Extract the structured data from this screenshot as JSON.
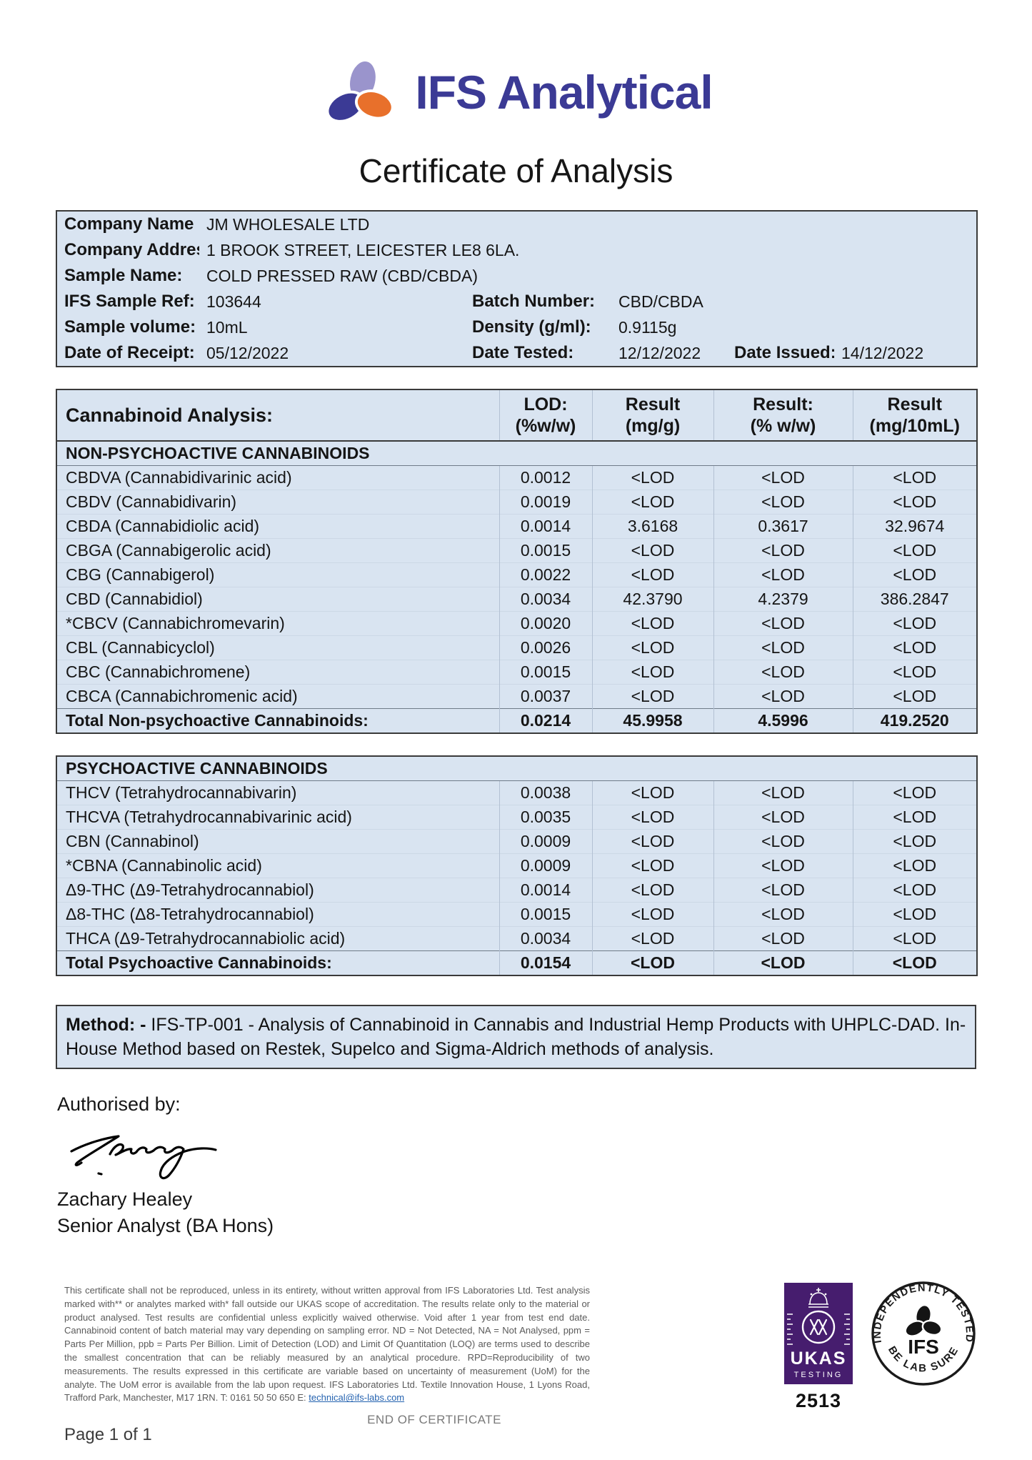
{
  "logo": {
    "brand": "IFS Analytical",
    "colors": {
      "indigo": "#3b3a95",
      "light_purple": "#9a94cc",
      "orange": "#e8702b"
    }
  },
  "title": "Certificate of Analysis",
  "info": {
    "rows": [
      {
        "label": "Company Name",
        "value": "JM WHOLESALE LTD"
      },
      {
        "label": "Company Address",
        "value": "1 BROOK STREET, LEICESTER LE8 6LA."
      },
      {
        "label": "Sample Name:",
        "value": "COLD PRESSED RAW (CBD/CBDA)"
      },
      {
        "label": "IFS Sample Ref:",
        "value": "103644",
        "label2": "Batch Number:",
        "value2": "CBD/CBDA"
      },
      {
        "label": "Sample volume:",
        "value": "10mL",
        "label2": "Density (g/ml):",
        "value2": "0.9115g"
      },
      {
        "label": "Date of Receipt:",
        "value": "05/12/2022",
        "label2": "Date Tested:",
        "value2": "12/12/2022",
        "label3": "Date Issued:",
        "value3": "14/12/2022"
      }
    ]
  },
  "analysis": {
    "header": {
      "name": "Cannabinoid Analysis:",
      "lod1": "LOD:",
      "lod2": "(%w/w)",
      "r1a": "Result",
      "r1b": "(mg/g)",
      "r2a": "Result:",
      "r2b": "(% w/w)",
      "r3a": "Result",
      "r3b": "(mg/10mL)"
    },
    "sections": [
      {
        "band": "NON-PSYCHOACTIVE CANNABINOIDS",
        "rows": [
          {
            "name": "CBDVA (Cannabidivarinic acid)",
            "lod": "0.0012",
            "mg_g": "<LOD",
            "pct_ww": "<LOD",
            "mg_10ml": "<LOD"
          },
          {
            "name": "CBDV (Cannabidivarin)",
            "lod": "0.0019",
            "mg_g": "<LOD",
            "pct_ww": "<LOD",
            "mg_10ml": "<LOD"
          },
          {
            "name": "CBDA (Cannabidiolic acid)",
            "lod": "0.0014",
            "mg_g": "3.6168",
            "pct_ww": "0.3617",
            "mg_10ml": "32.9674"
          },
          {
            "name": "CBGA (Cannabigerolic acid)",
            "lod": "0.0015",
            "mg_g": "<LOD",
            "pct_ww": "<LOD",
            "mg_10ml": "<LOD"
          },
          {
            "name": "CBG (Cannabigerol)",
            "lod": "0.0022",
            "mg_g": "<LOD",
            "pct_ww": "<LOD",
            "mg_10ml": "<LOD"
          },
          {
            "name": "CBD (Cannabidiol)",
            "lod": "0.0034",
            "mg_g": "42.3790",
            "pct_ww": "4.2379",
            "mg_10ml": "386.2847"
          },
          {
            "name": "*CBCV (Cannabichromevarin)",
            "lod": "0.0020",
            "mg_g": "<LOD",
            "pct_ww": "<LOD",
            "mg_10ml": "<LOD"
          },
          {
            "name": "CBL (Cannabicyclol)",
            "lod": "0.0026",
            "mg_g": "<LOD",
            "pct_ww": "<LOD",
            "mg_10ml": "<LOD"
          },
          {
            "name": "CBC (Cannabichromene)",
            "lod": "0.0015",
            "mg_g": "<LOD",
            "pct_ww": "<LOD",
            "mg_10ml": "<LOD"
          },
          {
            "name": "CBCA (Cannabichromenic acid)",
            "lod": "0.0037",
            "mg_g": "<LOD",
            "pct_ww": "<LOD",
            "mg_10ml": "<LOD"
          }
        ],
        "total": {
          "name": "Total Non-psychoactive Cannabinoids:",
          "lod": "0.0214",
          "mg_g": "45.9958",
          "pct_ww": "4.5996",
          "mg_10ml": "419.2520"
        }
      },
      {
        "band": "PSYCHOACTIVE CANNABINOIDS",
        "rows": [
          {
            "name": "THCV (Tetrahydrocannabivarin)",
            "lod": "0.0038",
            "mg_g": "<LOD",
            "pct_ww": "<LOD",
            "mg_10ml": "<LOD"
          },
          {
            "name": "THCVA (Tetrahydrocannabivarinic acid)",
            "lod": "0.0035",
            "mg_g": "<LOD",
            "pct_ww": "<LOD",
            "mg_10ml": "<LOD"
          },
          {
            "name": "CBN (Cannabinol)",
            "lod": "0.0009",
            "mg_g": "<LOD",
            "pct_ww": "<LOD",
            "mg_10ml": "<LOD"
          },
          {
            "name": "*CBNA (Cannabinolic acid)",
            "lod": "0.0009",
            "mg_g": "<LOD",
            "pct_ww": "<LOD",
            "mg_10ml": "<LOD"
          },
          {
            "name": "Δ9-THC (Δ9-Tetrahydrocannabiol)",
            "lod": "0.0014",
            "mg_g": "<LOD",
            "pct_ww": "<LOD",
            "mg_10ml": "<LOD"
          },
          {
            "name": "Δ8-THC (Δ8-Tetrahydrocannabiol)",
            "lod": "0.0015",
            "mg_g": "<LOD",
            "pct_ww": "<LOD",
            "mg_10ml": "<LOD"
          },
          {
            "name": "THCA (Δ9-Tetrahydrocannabiolic acid)",
            "lod": "0.0034",
            "mg_g": "<LOD",
            "pct_ww": "<LOD",
            "mg_10ml": "<LOD"
          }
        ],
        "total": {
          "name": "Total Psychoactive Cannabinoids:",
          "lod": "0.0154",
          "mg_g": "<LOD",
          "pct_ww": "<LOD",
          "mg_10ml": "<LOD"
        }
      }
    ]
  },
  "method": {
    "label": "Method: -",
    "text": "IFS-TP-001 - Analysis of Cannabinoid in Cannabis and Industrial Hemp Products with UHPLC-DAD. In-House Method based on Restek, Supelco and Sigma-Aldrich methods of analysis."
  },
  "signature": {
    "authorised_by": "Authorised by:",
    "name": "Zachary Healey",
    "title": "Senior Analyst (BA Hons)"
  },
  "footer": {
    "disclaimer": "This certificate shall not be reproduced, unless in its entirety, without written approval from IFS Laboratories Ltd. Test analysis marked with** or analytes marked with* fall outside our UKAS scope of accreditation.  The results relate only to the material or product analysed. Test results are confidential unless explicitly waived otherwise. Void after 1 year from test end date. Cannabinoid content of batch material may vary depending on sampling error. ND = Not Detected, NA = Not Analysed, ppm = Parts Per Million, ppb = Parts Per Billion. Limit of Detection (LOD) and Limit Of Quantitation (LOQ) are terms used to describe the smallest concentration that can be reliably measured by an analytical procedure. RPD=Reproducibility of two measurements. The results expressed in this certificate are variable based on uncertainty of measurement (UoM) for the analyte. The UoM error is available from the lab upon request. IFS Laboratories Ltd. Textile Innovation House, 1 Lyons Road, Trafford Park, Manchester, M17 1RN. T: 0161 50 50 650 E: ",
    "email": "technical@ifs-labs.com",
    "ukas": {
      "name": "UKAS",
      "sub": "TESTING",
      "number": "2513"
    },
    "stamp": {
      "arc_top": "INDEPENDENTLY TESTED",
      "arc_bottom": "BE LAB SURE",
      "center": "IFS"
    },
    "end": "END OF CERTIFICATE",
    "page": "Page 1 of 1"
  }
}
